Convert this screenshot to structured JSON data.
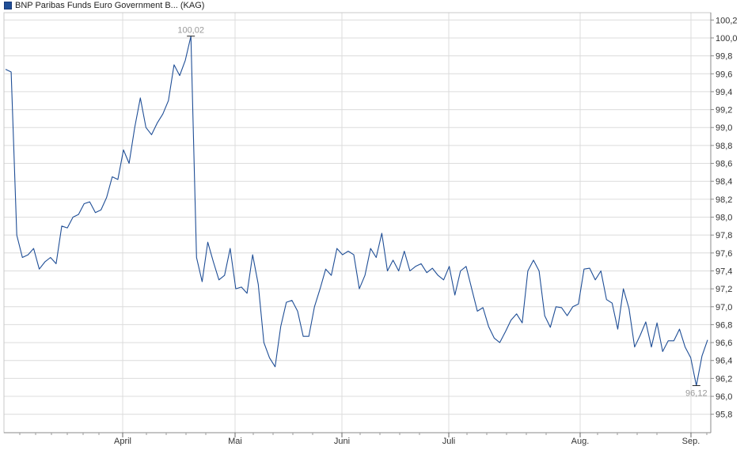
{
  "chart_data": {
    "type": "line",
    "legend": "BNP Paribas Funds Euro Government B... (KAG)",
    "series_color": "#1f4e96",
    "grid": true,
    "y_axis_position": "right",
    "ylim": [
      95.8,
      100.2
    ],
    "y_ticks": [
      "100,2",
      "100,0",
      "99,8",
      "99,6",
      "99,4",
      "99,2",
      "99,0",
      "98,8",
      "98,6",
      "98,4",
      "98,2",
      "98,0",
      "97,8",
      "97,6",
      "97,4",
      "97,2",
      "97,0",
      "96,8",
      "96,6",
      "96,4",
      "96,2",
      "96,0",
      "95,8"
    ],
    "x_ticks": [
      "April",
      "Mai",
      "Juni",
      "Juli",
      "Aug.",
      "Sep."
    ],
    "annotations": [
      {
        "label": "100,02",
        "type": "max"
      },
      {
        "label": "96,12",
        "type": "min"
      }
    ],
    "series": [
      {
        "values": [
          99.65,
          99.62,
          97.8,
          97.55,
          97.58,
          97.65,
          97.42,
          97.5,
          97.55,
          97.48,
          97.9,
          97.88,
          98.0,
          98.03,
          98.15,
          98.17,
          98.05,
          98.08,
          98.22,
          98.45,
          98.42,
          98.75,
          98.6,
          99.0,
          99.33,
          99.0,
          98.92,
          99.05,
          99.15,
          99.3,
          99.7,
          99.58,
          99.75,
          100.02,
          97.55,
          97.28,
          97.72,
          97.5,
          97.3,
          97.35,
          97.65,
          97.2,
          97.22,
          97.15,
          97.58,
          97.25,
          96.6,
          96.43,
          96.33,
          96.78,
          97.05,
          97.07,
          96.95,
          96.67,
          96.67,
          97.0,
          97.2,
          97.42,
          97.35,
          97.65,
          97.58,
          97.62,
          97.58,
          97.2,
          97.35,
          97.65,
          97.55,
          97.82,
          97.4,
          97.52,
          97.4,
          97.62,
          97.4,
          97.45,
          97.48,
          97.38,
          97.43,
          97.35,
          97.3,
          97.45,
          97.13,
          97.4,
          97.45,
          97.2,
          96.95,
          96.99,
          96.78,
          96.65,
          96.6,
          96.72,
          96.85,
          96.92,
          96.82,
          97.4,
          97.52,
          97.4,
          96.9,
          96.77,
          97.0,
          96.99,
          96.9,
          97.0,
          97.03,
          97.42,
          97.43,
          97.3,
          97.4,
          97.08,
          97.04,
          96.75,
          97.2,
          96.98,
          96.55,
          96.68,
          96.83,
          96.55,
          96.82,
          96.5,
          96.62,
          96.62,
          96.75,
          96.55,
          96.43,
          96.12,
          96.45,
          96.63
        ]
      }
    ]
  }
}
